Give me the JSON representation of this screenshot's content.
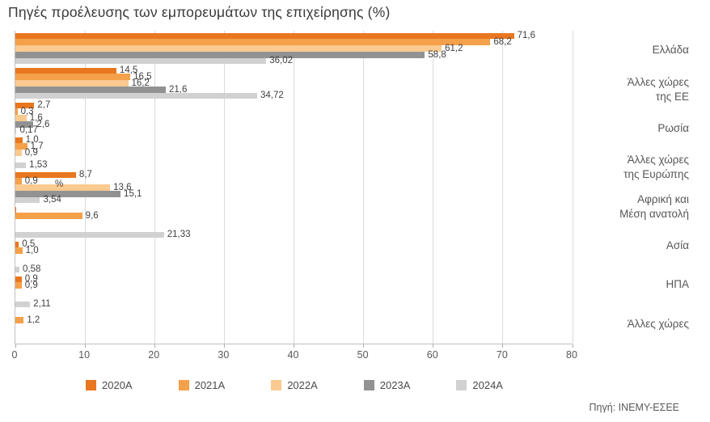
{
  "title": "Πηγές προέλευσης των εμπορευμάτων της επιχείρησης (%)",
  "source": "Πηγή: ΙΝΕΜΥ-ΕΣΕΕ",
  "chart_data": {
    "type": "bar",
    "orientation": "horizontal",
    "xlim": [
      0,
      80
    ],
    "x_ticks": [
      "0",
      "10",
      "20",
      "30",
      "40",
      "50",
      "60",
      "70",
      "80"
    ],
    "grid": true,
    "legend_position": "bottom",
    "series": [
      {
        "name": "2020A",
        "color": "#E8771F"
      },
      {
        "name": "2021A",
        "color": "#F5A04A"
      },
      {
        "name": "2022A",
        "color": "#FACA90"
      },
      {
        "name": "2023A",
        "color": "#929292"
      },
      {
        "name": "2024A",
        "color": "#D1D1D1"
      }
    ],
    "groups": [
      {
        "label": "Ελλάδα",
        "values": [
          71.6,
          68.2,
          61.2,
          58.8,
          36.02
        ],
        "value_labels": [
          "71,6",
          "68,2",
          "61,2",
          "58,8",
          "36,02"
        ]
      },
      {
        "label": "Άλλες χώρες της ΕΕ",
        "values": [
          14.5,
          16.5,
          16.2,
          21.6,
          34.72
        ],
        "value_labels": [
          "14,5",
          "16,5",
          "16,2",
          "21,6",
          "34,72"
        ]
      },
      {
        "label": "Ρωσία",
        "values": [
          2.7,
          0.3,
          1.6,
          2.6,
          0.17
        ],
        "value_labels": [
          "2,7",
          "0,3",
          "1,6",
          "2,6",
          "0,17"
        ]
      },
      {
        "label": "Άλλες χώρες της Ευρώπης",
        "values": [
          1.0,
          1.7,
          0.9,
          0,
          1.53
        ],
        "value_labels": [
          "1,0",
          "1,7",
          "0,9",
          "",
          "1,53"
        ]
      },
      {
        "label": "",
        "values": [
          8.7,
          0.9,
          13.6,
          15.1,
          3.54
        ],
        "value_labels": [
          "8,7",
          "0,9",
          "13,6",
          "15,1",
          "3,54"
        ]
      },
      {
        "label": "Αφρική και Μέση ανατολή",
        "values": [
          0.1,
          9.6,
          0,
          0,
          21.33
        ],
        "value_labels": [
          "",
          "9,6",
          "",
          "",
          "21,33"
        ]
      },
      {
        "label": "Ασία",
        "values": [
          0.5,
          1.0,
          0,
          0,
          0.58
        ],
        "value_labels": [
          "0,5",
          "1,0",
          "",
          "",
          "0,58"
        ]
      },
      {
        "label": "ΗΠΑ",
        "values": [
          0.9,
          0.9,
          0,
          0,
          2.11
        ],
        "value_labels": [
          "0,9",
          "0,9",
          "",
          "",
          "2,11"
        ]
      },
      {
        "label": "Άλλες χώρες",
        "values": [
          0,
          1.2,
          0,
          0,
          0
        ],
        "value_labels": [
          "",
          "1,2",
          "",
          "",
          ""
        ]
      }
    ],
    "axis_category_labels": [
      [
        "Ελλάδα"
      ],
      [
        "Άλλες χώρες",
        "της ΕΕ"
      ],
      [
        "Ρωσία"
      ],
      [
        "Άλλες χώρες",
        "της Ευρώπης"
      ],
      [
        "Αφρική και",
        "Μέση ανατολή"
      ],
      [
        "Ασία"
      ],
      [
        "ΗΠΑ"
      ],
      [
        "Άλλες χώρες"
      ]
    ],
    "annotations": [
      {
        "text": "%",
        "x": 49,
        "y": 190
      }
    ]
  }
}
